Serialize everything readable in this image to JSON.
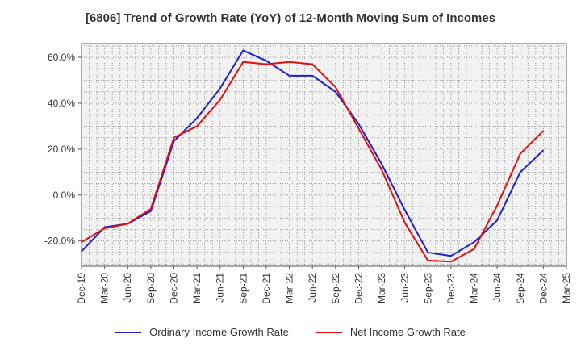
{
  "chart_data": {
    "type": "line",
    "title": "[6806]  Trend of Growth Rate (YoY) of 12-Month Moving Sum of Incomes",
    "xlabel": "",
    "ylabel": "",
    "x": [
      "Dec-19",
      "Mar-20",
      "Jun-20",
      "Sep-20",
      "Dec-20",
      "Mar-21",
      "Jun-21",
      "Sep-21",
      "Dec-21",
      "Mar-22",
      "Jun-22",
      "Sep-22",
      "Dec-22",
      "Mar-23",
      "Jun-23",
      "Sep-23",
      "Dec-23",
      "Mar-24",
      "Jun-24",
      "Sep-24",
      "Dec-24",
      "Mar-25"
    ],
    "ylim": [
      -31,
      66
    ],
    "yticks": [
      60,
      40,
      20,
      0,
      -20
    ],
    "ytick_labels": [
      "60.0%",
      "40.0%",
      "20.0%",
      "0.0%",
      "-20.0%"
    ],
    "grid": true,
    "legend_position": "bottom",
    "series": [
      {
        "name": "Ordinary Income Growth Rate",
        "color": "#1f1fcc",
        "values": [
          -24.5,
          -14.0,
          -12.5,
          -7.0,
          23.5,
          33.5,
          46.5,
          63.0,
          58.5,
          52.0,
          52.0,
          45.0,
          31.0,
          13.5,
          -6.5,
          -25.0,
          -26.5,
          -20.5,
          -11.0,
          10.0,
          19.5,
          null
        ]
      },
      {
        "name": "Net Income Growth Rate",
        "color": "#e01010",
        "values": [
          -20.5,
          -14.5,
          -12.5,
          -6.0,
          25.0,
          30.0,
          41.5,
          58.0,
          57.0,
          58.0,
          57.0,
          47.0,
          29.0,
          11.0,
          -12.0,
          -28.5,
          -29.0,
          -23.5,
          -4.5,
          18.0,
          28.0,
          null
        ]
      }
    ]
  }
}
